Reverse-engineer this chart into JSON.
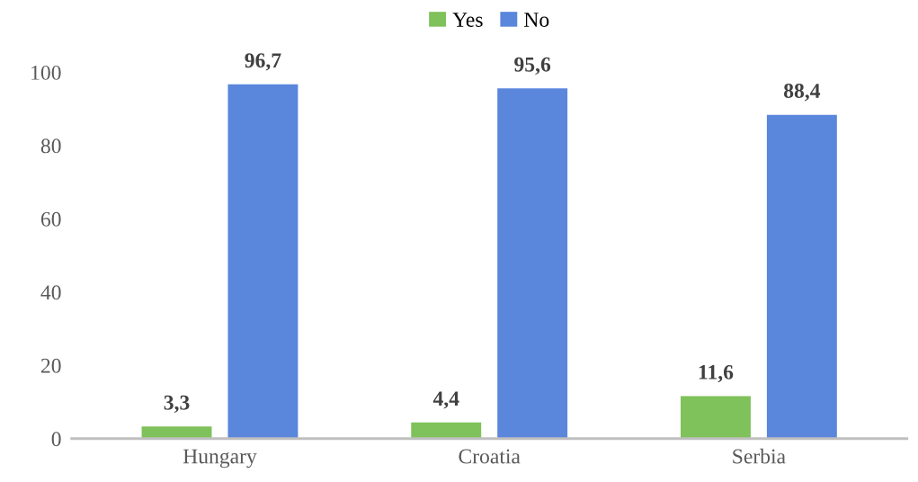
{
  "chart_data": {
    "type": "bar",
    "categories": [
      "Hungary",
      "Croatia",
      "Serbia"
    ],
    "series": [
      {
        "name": "Yes",
        "color": "#7fc15a",
        "values": [
          3.3,
          4.4,
          11.6
        ],
        "value_labels": [
          "3,3",
          "4,4",
          "11,6"
        ]
      },
      {
        "name": "No",
        "color": "#5a86dc",
        "values": [
          96.7,
          95.6,
          88.4
        ],
        "value_labels": [
          "96,7",
          "95,6",
          "88,4"
        ]
      }
    ],
    "ylim": [
      0,
      100
    ],
    "yticks": [
      0,
      20,
      40,
      60,
      80,
      100
    ],
    "grid": false,
    "legend": "top"
  }
}
